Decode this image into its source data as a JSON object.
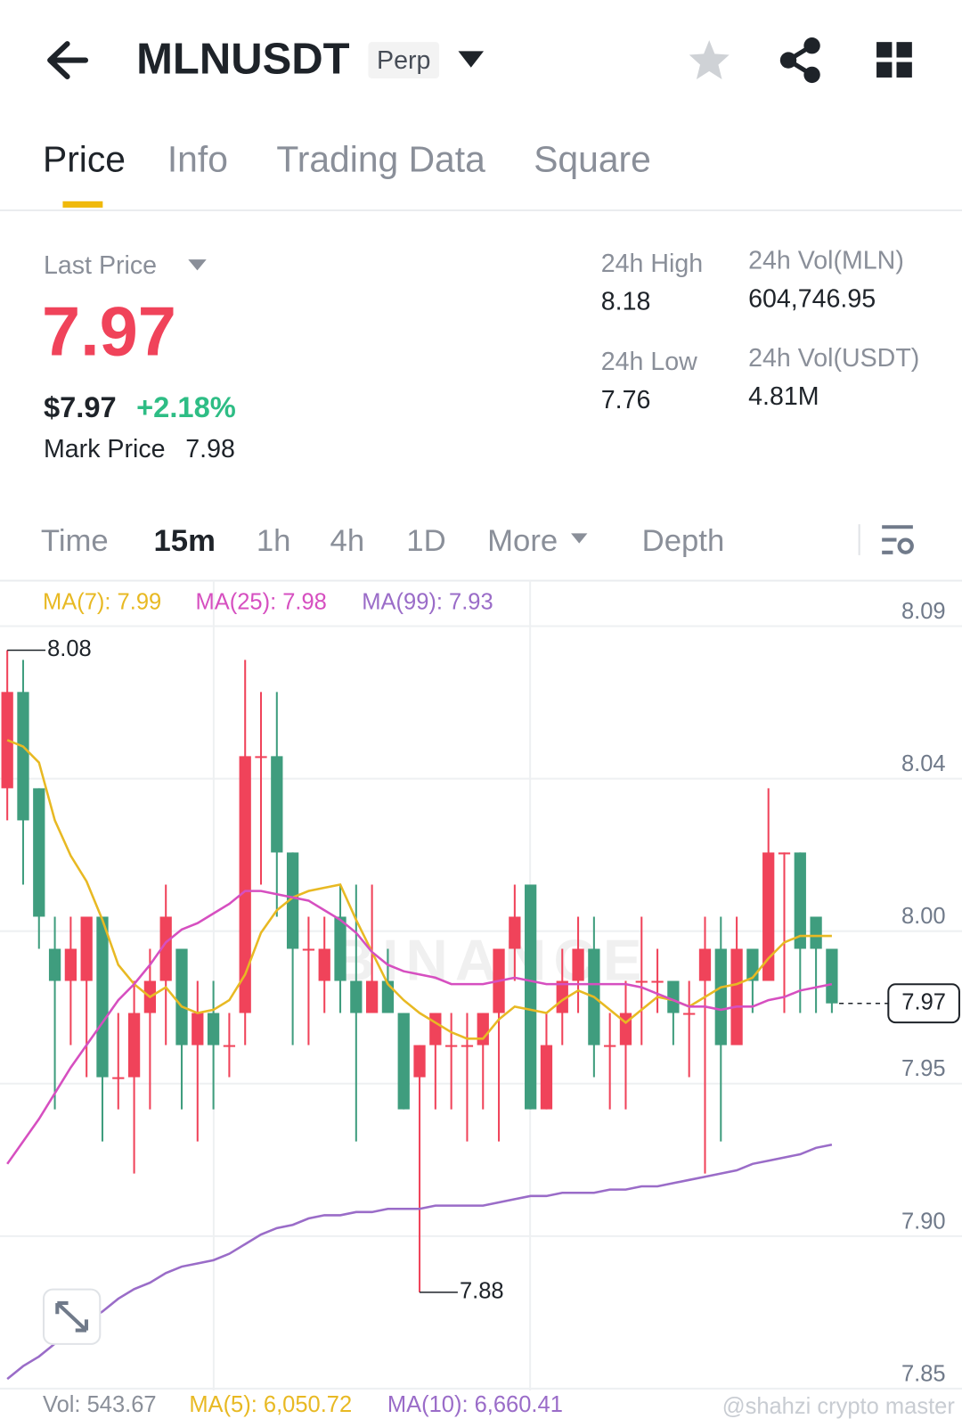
{
  "header": {
    "symbol": "MLNUSDT",
    "badge": "Perp"
  },
  "tabs": [
    "Price",
    "Info",
    "Trading Data",
    "Square"
  ],
  "stats": {
    "last_price_label": "Last Price",
    "last_price": "7.97",
    "usd_price": "$7.97",
    "change": "+2.18%",
    "mark_price_label": "Mark Price",
    "mark_price": "7.98",
    "high_label": "24h High",
    "high": "8.18",
    "low_label": "24h Low",
    "low": "7.76",
    "vol_base_label": "24h Vol(MLN)",
    "vol_base": "604,746.95",
    "vol_quote_label": "24h Vol(USDT)",
    "vol_quote": "4.81M"
  },
  "intervals": [
    "Time",
    "15m",
    "1h",
    "4h",
    "1D",
    "More",
    "Depth"
  ],
  "chart": {
    "type": "candlestick",
    "watermark": "BINANCE",
    "up_color": "#f0435a",
    "down_color": "#3f9d7e",
    "ylim": [
      7.85,
      8.0875
    ],
    "yticks": [
      {
        "value": 7.85,
        "label": "7.85"
      },
      {
        "value": 7.8975,
        "label": "7.90"
      },
      {
        "value": 7.945,
        "label": "7.95"
      },
      {
        "value": 7.9925,
        "label": "8.00"
      },
      {
        "value": 8.04,
        "label": "8.04"
      },
      {
        "value": 8.0875,
        "label": "8.09"
      }
    ],
    "current_price": 7.97,
    "ma_legend": [
      "MA(7): 7.99",
      "MA(25): 7.98",
      "MA(99): 7.93"
    ],
    "candles": [
      {
        "open": 8.037,
        "high": 8.08,
        "low": 8.027,
        "close": 8.067
      },
      {
        "open": 8.067,
        "high": 8.077,
        "low": 8.007,
        "close": 8.027
      },
      {
        "open": 8.037,
        "high": 8.037,
        "low": 7.987,
        "close": 7.997
      },
      {
        "open": 7.987,
        "high": 7.997,
        "low": 7.937,
        "close": 7.977
      },
      {
        "open": 7.977,
        "high": 7.997,
        "low": 7.957,
        "close": 7.987
      },
      {
        "open": 7.977,
        "high": 7.997,
        "low": 7.947,
        "close": 7.997
      },
      {
        "open": 7.997,
        "high": 7.997,
        "low": 7.927,
        "close": 7.947
      },
      {
        "open": 7.947,
        "high": 7.967,
        "low": 7.937,
        "close": 7.947
      },
      {
        "open": 7.947,
        "high": 7.977,
        "low": 7.917,
        "close": 7.967
      },
      {
        "open": 7.967,
        "high": 7.987,
        "low": 7.937,
        "close": 7.977
      },
      {
        "open": 7.977,
        "high": 8.007,
        "low": 7.957,
        "close": 7.997
      },
      {
        "open": 7.987,
        "high": 7.987,
        "low": 7.937,
        "close": 7.957
      },
      {
        "open": 7.957,
        "high": 7.977,
        "low": 7.927,
        "close": 7.967
      },
      {
        "open": 7.967,
        "high": 7.977,
        "low": 7.937,
        "close": 7.957
      },
      {
        "open": 7.957,
        "high": 7.967,
        "low": 7.947,
        "close": 7.957
      },
      {
        "open": 7.967,
        "high": 8.077,
        "low": 7.957,
        "close": 8.047
      },
      {
        "open": 8.047,
        "high": 8.067,
        "low": 8.007,
        "close": 8.047
      },
      {
        "open": 8.047,
        "high": 8.067,
        "low": 7.997,
        "close": 8.017
      },
      {
        "open": 8.017,
        "high": 8.017,
        "low": 7.957,
        "close": 7.987
      },
      {
        "open": 7.987,
        "high": 7.997,
        "low": 7.957,
        "close": 7.987
      },
      {
        "open": 7.977,
        "high": 7.997,
        "low": 7.967,
        "close": 7.987
      },
      {
        "open": 7.997,
        "high": 8.007,
        "low": 7.967,
        "close": 7.977
      },
      {
        "open": 7.977,
        "high": 8.007,
        "low": 7.927,
        "close": 7.967
      },
      {
        "open": 7.967,
        "high": 8.007,
        "low": 7.967,
        "close": 7.977
      },
      {
        "open": 7.977,
        "high": 7.987,
        "low": 7.967,
        "close": 7.967
      },
      {
        "open": 7.967,
        "high": 7.967,
        "low": 7.937,
        "close": 7.937
      },
      {
        "open": 7.947,
        "high": 7.957,
        "low": 7.88,
        "close": 7.957
      },
      {
        "open": 7.957,
        "high": 7.967,
        "low": 7.937,
        "close": 7.967
      },
      {
        "open": 7.957,
        "high": 7.967,
        "low": 7.937,
        "close": 7.957
      },
      {
        "open": 7.957,
        "high": 7.967,
        "low": 7.927,
        "close": 7.957
      },
      {
        "open": 7.957,
        "high": 7.967,
        "low": 7.937,
        "close": 7.967
      },
      {
        "open": 7.967,
        "high": 7.987,
        "low": 7.927,
        "close": 7.987
      },
      {
        "open": 7.987,
        "high": 8.007,
        "low": 7.977,
        "close": 7.997
      },
      {
        "open": 8.007,
        "high": 8.007,
        "low": 7.937,
        "close": 7.937
      },
      {
        "open": 7.937,
        "high": 7.967,
        "low": 7.937,
        "close": 7.957
      },
      {
        "open": 7.967,
        "high": 7.987,
        "low": 7.957,
        "close": 7.977
      },
      {
        "open": 7.977,
        "high": 7.997,
        "low": 7.967,
        "close": 7.987
      },
      {
        "open": 7.987,
        "high": 7.997,
        "low": 7.947,
        "close": 7.957
      },
      {
        "open": 7.957,
        "high": 7.967,
        "low": 7.937,
        "close": 7.957
      },
      {
        "open": 7.957,
        "high": 7.977,
        "low": 7.937,
        "close": 7.967
      },
      {
        "open": 7.977,
        "high": 7.997,
        "low": 7.957,
        "close": 7.977
      },
      {
        "open": 7.977,
        "high": 7.987,
        "low": 7.967,
        "close": 7.977
      },
      {
        "open": 7.977,
        "high": 7.977,
        "low": 7.957,
        "close": 7.967
      },
      {
        "open": 7.967,
        "high": 7.977,
        "low": 7.947,
        "close": 7.967
      },
      {
        "open": 7.977,
        "high": 7.997,
        "low": 7.917,
        "close": 7.987
      },
      {
        "open": 7.987,
        "high": 7.997,
        "low": 7.927,
        "close": 7.957
      },
      {
        "open": 7.957,
        "high": 7.997,
        "low": 7.957,
        "close": 7.987
      },
      {
        "open": 7.987,
        "high": 7.987,
        "low": 7.967,
        "close": 7.977
      },
      {
        "open": 7.977,
        "high": 8.037,
        "low": 7.977,
        "close": 8.017
      },
      {
        "open": 8.017,
        "high": 8.017,
        "low": 7.967,
        "close": 8.017
      },
      {
        "open": 8.017,
        "high": 8.017,
        "low": 7.967,
        "close": 7.987
      },
      {
        "open": 7.997,
        "high": 7.997,
        "low": 7.967,
        "close": 7.987
      },
      {
        "open": 7.987,
        "high": 7.987,
        "low": 7.967,
        "close": 7.97
      }
    ],
    "series": [
      {
        "name": "MA(7)",
        "color": "#e8b923",
        "values": [
          8.052,
          8.05,
          8.045,
          8.027,
          8.016,
          8.008,
          7.996,
          7.982,
          7.976,
          7.972,
          7.975,
          7.969,
          7.967,
          7.968,
          7.971,
          7.979,
          7.992,
          7.999,
          8.003,
          8.005,
          8.006,
          8.007,
          7.996,
          7.986,
          7.976,
          7.971,
          7.967,
          7.964,
          7.961,
          7.959,
          7.959,
          7.965,
          7.969,
          7.968,
          7.967,
          7.971,
          7.974,
          7.972,
          7.968,
          7.964,
          7.968,
          7.972,
          7.971,
          7.969,
          7.972,
          7.975,
          7.976,
          7.978,
          7.984,
          7.989,
          7.991,
          7.991,
          7.991
        ]
      },
      {
        "name": "MA(25)",
        "color": "#d64fc0",
        "values": [
          7.92,
          7.927,
          7.934,
          7.942,
          7.95,
          7.957,
          7.964,
          7.971,
          7.976,
          7.982,
          7.989,
          7.993,
          7.995,
          7.998,
          8.001,
          8.005,
          8.005,
          8.004,
          8.003,
          8.002,
          7.999,
          7.996,
          7.992,
          7.986,
          7.982,
          7.98,
          7.979,
          7.978,
          7.976,
          7.976,
          7.976,
          7.977,
          7.978,
          7.977,
          7.976,
          7.976,
          7.976,
          7.976,
          7.976,
          7.976,
          7.975,
          7.973,
          7.971,
          7.969,
          7.969,
          7.968,
          7.969,
          7.969,
          7.971,
          7.972,
          7.974,
          7.975,
          7.976
        ]
      },
      {
        "name": "MA(99)",
        "color": "#9a6cc8",
        "values": [
          7.853,
          7.857,
          7.86,
          7.864,
          7.867,
          7.871,
          7.874,
          7.878,
          7.881,
          7.883,
          7.886,
          7.888,
          7.889,
          7.89,
          7.892,
          7.895,
          7.898,
          7.9,
          7.901,
          7.903,
          7.904,
          7.904,
          7.905,
          7.905,
          7.906,
          7.906,
          7.906,
          7.907,
          7.907,
          7.907,
          7.907,
          7.908,
          7.909,
          7.91,
          7.91,
          7.911,
          7.911,
          7.911,
          7.912,
          7.912,
          7.913,
          7.913,
          7.914,
          7.915,
          7.916,
          7.917,
          7.918,
          7.92,
          7.921,
          7.922,
          7.923,
          7.925,
          7.926
        ]
      }
    ],
    "volume_legend": [
      "Vol: 543.67",
      "MA(5): 6,050.72",
      "MA(10): 6,660.41"
    ]
  },
  "credit": "@shahzi crypto master"
}
